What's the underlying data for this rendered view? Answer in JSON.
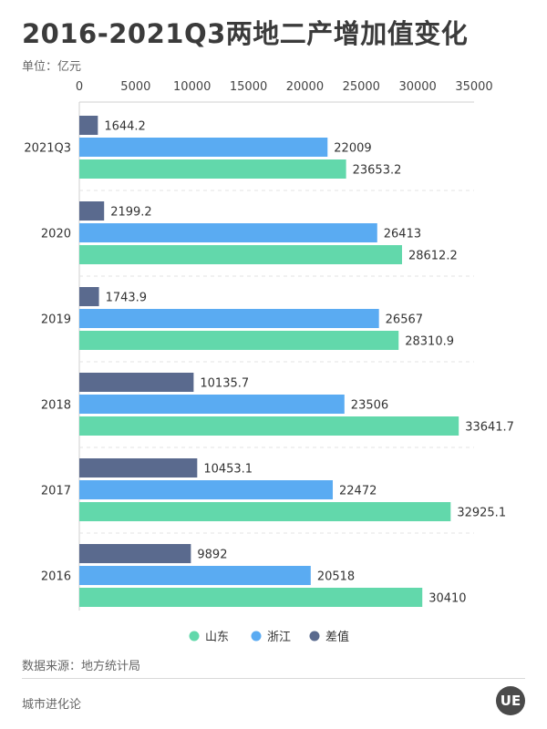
{
  "header": {
    "title": "2016-2021Q3两地二产增加值变化",
    "unit": "单位：亿元"
  },
  "footer": {
    "source": "数据来源：地方统计局",
    "brand": "城市进化论",
    "logo_text": "UE"
  },
  "colors": {
    "shandong": "#62d8ab",
    "zhejiang": "#5aabf2",
    "diff": "#5a6a8e"
  },
  "chart_data": {
    "type": "bar",
    "orientation": "horizontal",
    "categories": [
      "2021Q3",
      "2020",
      "2019",
      "2018",
      "2017",
      "2016"
    ],
    "series": [
      {
        "name": "差值",
        "values": [
          1644.2,
          2199.2,
          1743.9,
          10135.7,
          10453.1,
          9892
        ],
        "labels": [
          "1644.2",
          "2199.2",
          "1743.9",
          "10135.7",
          "10453.1",
          "9892"
        ]
      },
      {
        "name": "浙江",
        "values": [
          22009,
          26413,
          26567,
          23506,
          22472,
          20518
        ],
        "labels": [
          "22009",
          "26413",
          "26567",
          "23506",
          "22472",
          "20518"
        ]
      },
      {
        "name": "山东",
        "values": [
          23653.2,
          28612.2,
          28310.9,
          33641.7,
          32925.1,
          30410
        ],
        "labels": [
          "23653.2",
          "28612.2",
          "28310.9",
          "33641.7",
          "32925.1",
          "30410"
        ]
      }
    ],
    "x_ticks": [
      "0",
      "5000",
      "10000",
      "15000",
      "20000",
      "25000",
      "30000",
      "35000"
    ],
    "xlim": [
      0,
      35000
    ],
    "legend": [
      "山东",
      "浙江",
      "差值"
    ],
    "legend_position": "bottom"
  }
}
